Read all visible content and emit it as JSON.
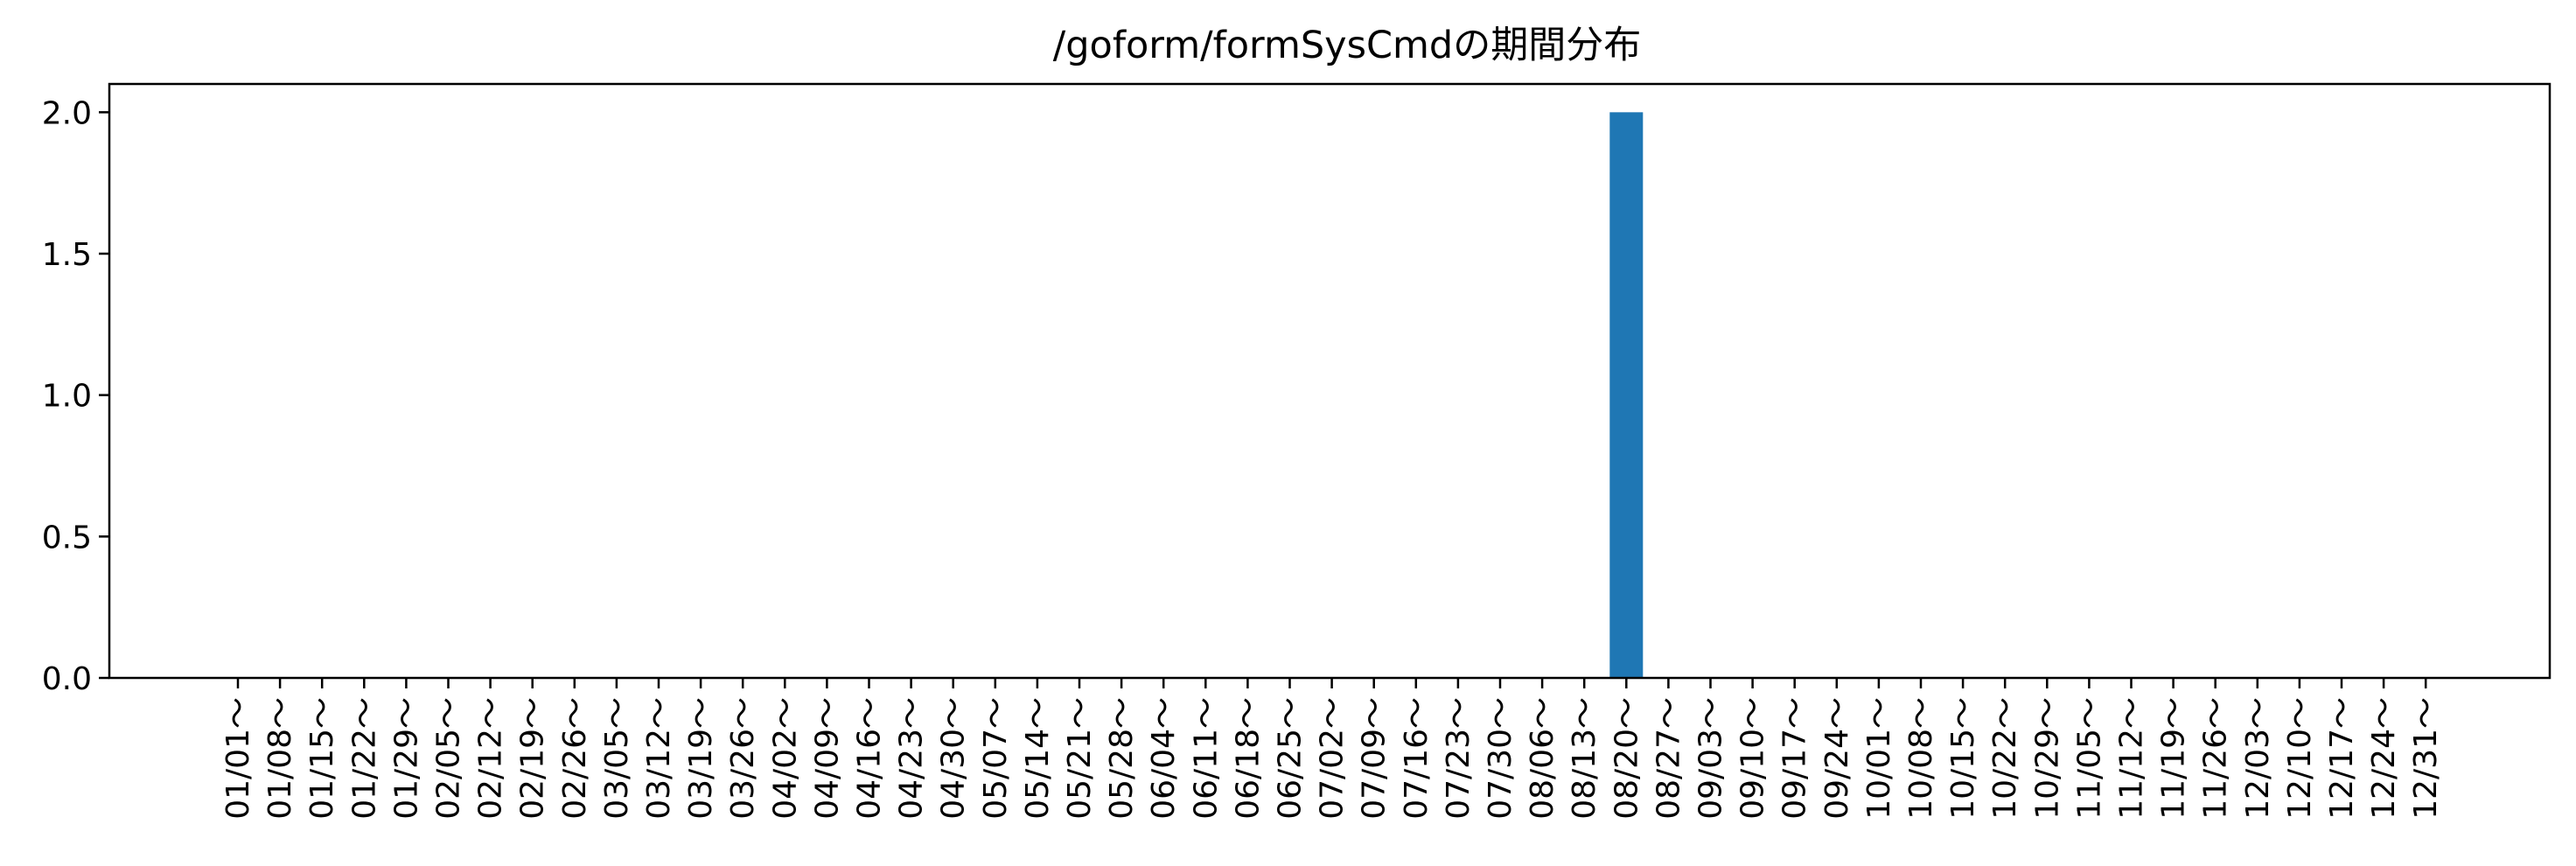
{
  "chart_data": {
    "type": "bar",
    "title": "/goform/formSysCmdの期間分布",
    "xlabel": "",
    "ylabel": "",
    "ylim": [
      0,
      2.1
    ],
    "yticks": [
      "0.0",
      "0.5",
      "1.0",
      "1.5",
      "2.0"
    ],
    "ytick_values": [
      0,
      0.5,
      1.0,
      1.5,
      2.0
    ],
    "grid": false,
    "bar_color": "#1f77b4",
    "categories": [
      "01/01～",
      "01/08～",
      "01/15～",
      "01/22～",
      "01/29～",
      "02/05～",
      "02/12～",
      "02/19～",
      "02/26～",
      "03/05～",
      "03/12～",
      "03/19～",
      "03/26～",
      "04/02～",
      "04/09～",
      "04/16～",
      "04/23～",
      "04/30～",
      "05/07～",
      "05/14～",
      "05/21～",
      "05/28～",
      "06/04～",
      "06/11～",
      "06/18～",
      "06/25～",
      "07/02～",
      "07/09～",
      "07/16～",
      "07/23～",
      "07/30～",
      "08/06～",
      "08/13～",
      "08/20～",
      "08/27～",
      "09/03～",
      "09/10～",
      "09/17～",
      "09/24～",
      "10/01～",
      "10/08～",
      "10/15～",
      "10/22～",
      "10/29～",
      "11/05～",
      "11/12～",
      "11/19～",
      "11/26～",
      "12/03～",
      "12/10～",
      "12/17～",
      "12/24～",
      "12/31～"
    ],
    "values": [
      0,
      0,
      0,
      0,
      0,
      0,
      0,
      0,
      0,
      0,
      0,
      0,
      0,
      0,
      0,
      0,
      0,
      0,
      0,
      0,
      0,
      0,
      0,
      0,
      0,
      0,
      0,
      0,
      0,
      0,
      0,
      0,
      0,
      2,
      0,
      0,
      0,
      0,
      0,
      0,
      0,
      0,
      0,
      0,
      0,
      0,
      0,
      0,
      0,
      0,
      0,
      0,
      0
    ]
  }
}
